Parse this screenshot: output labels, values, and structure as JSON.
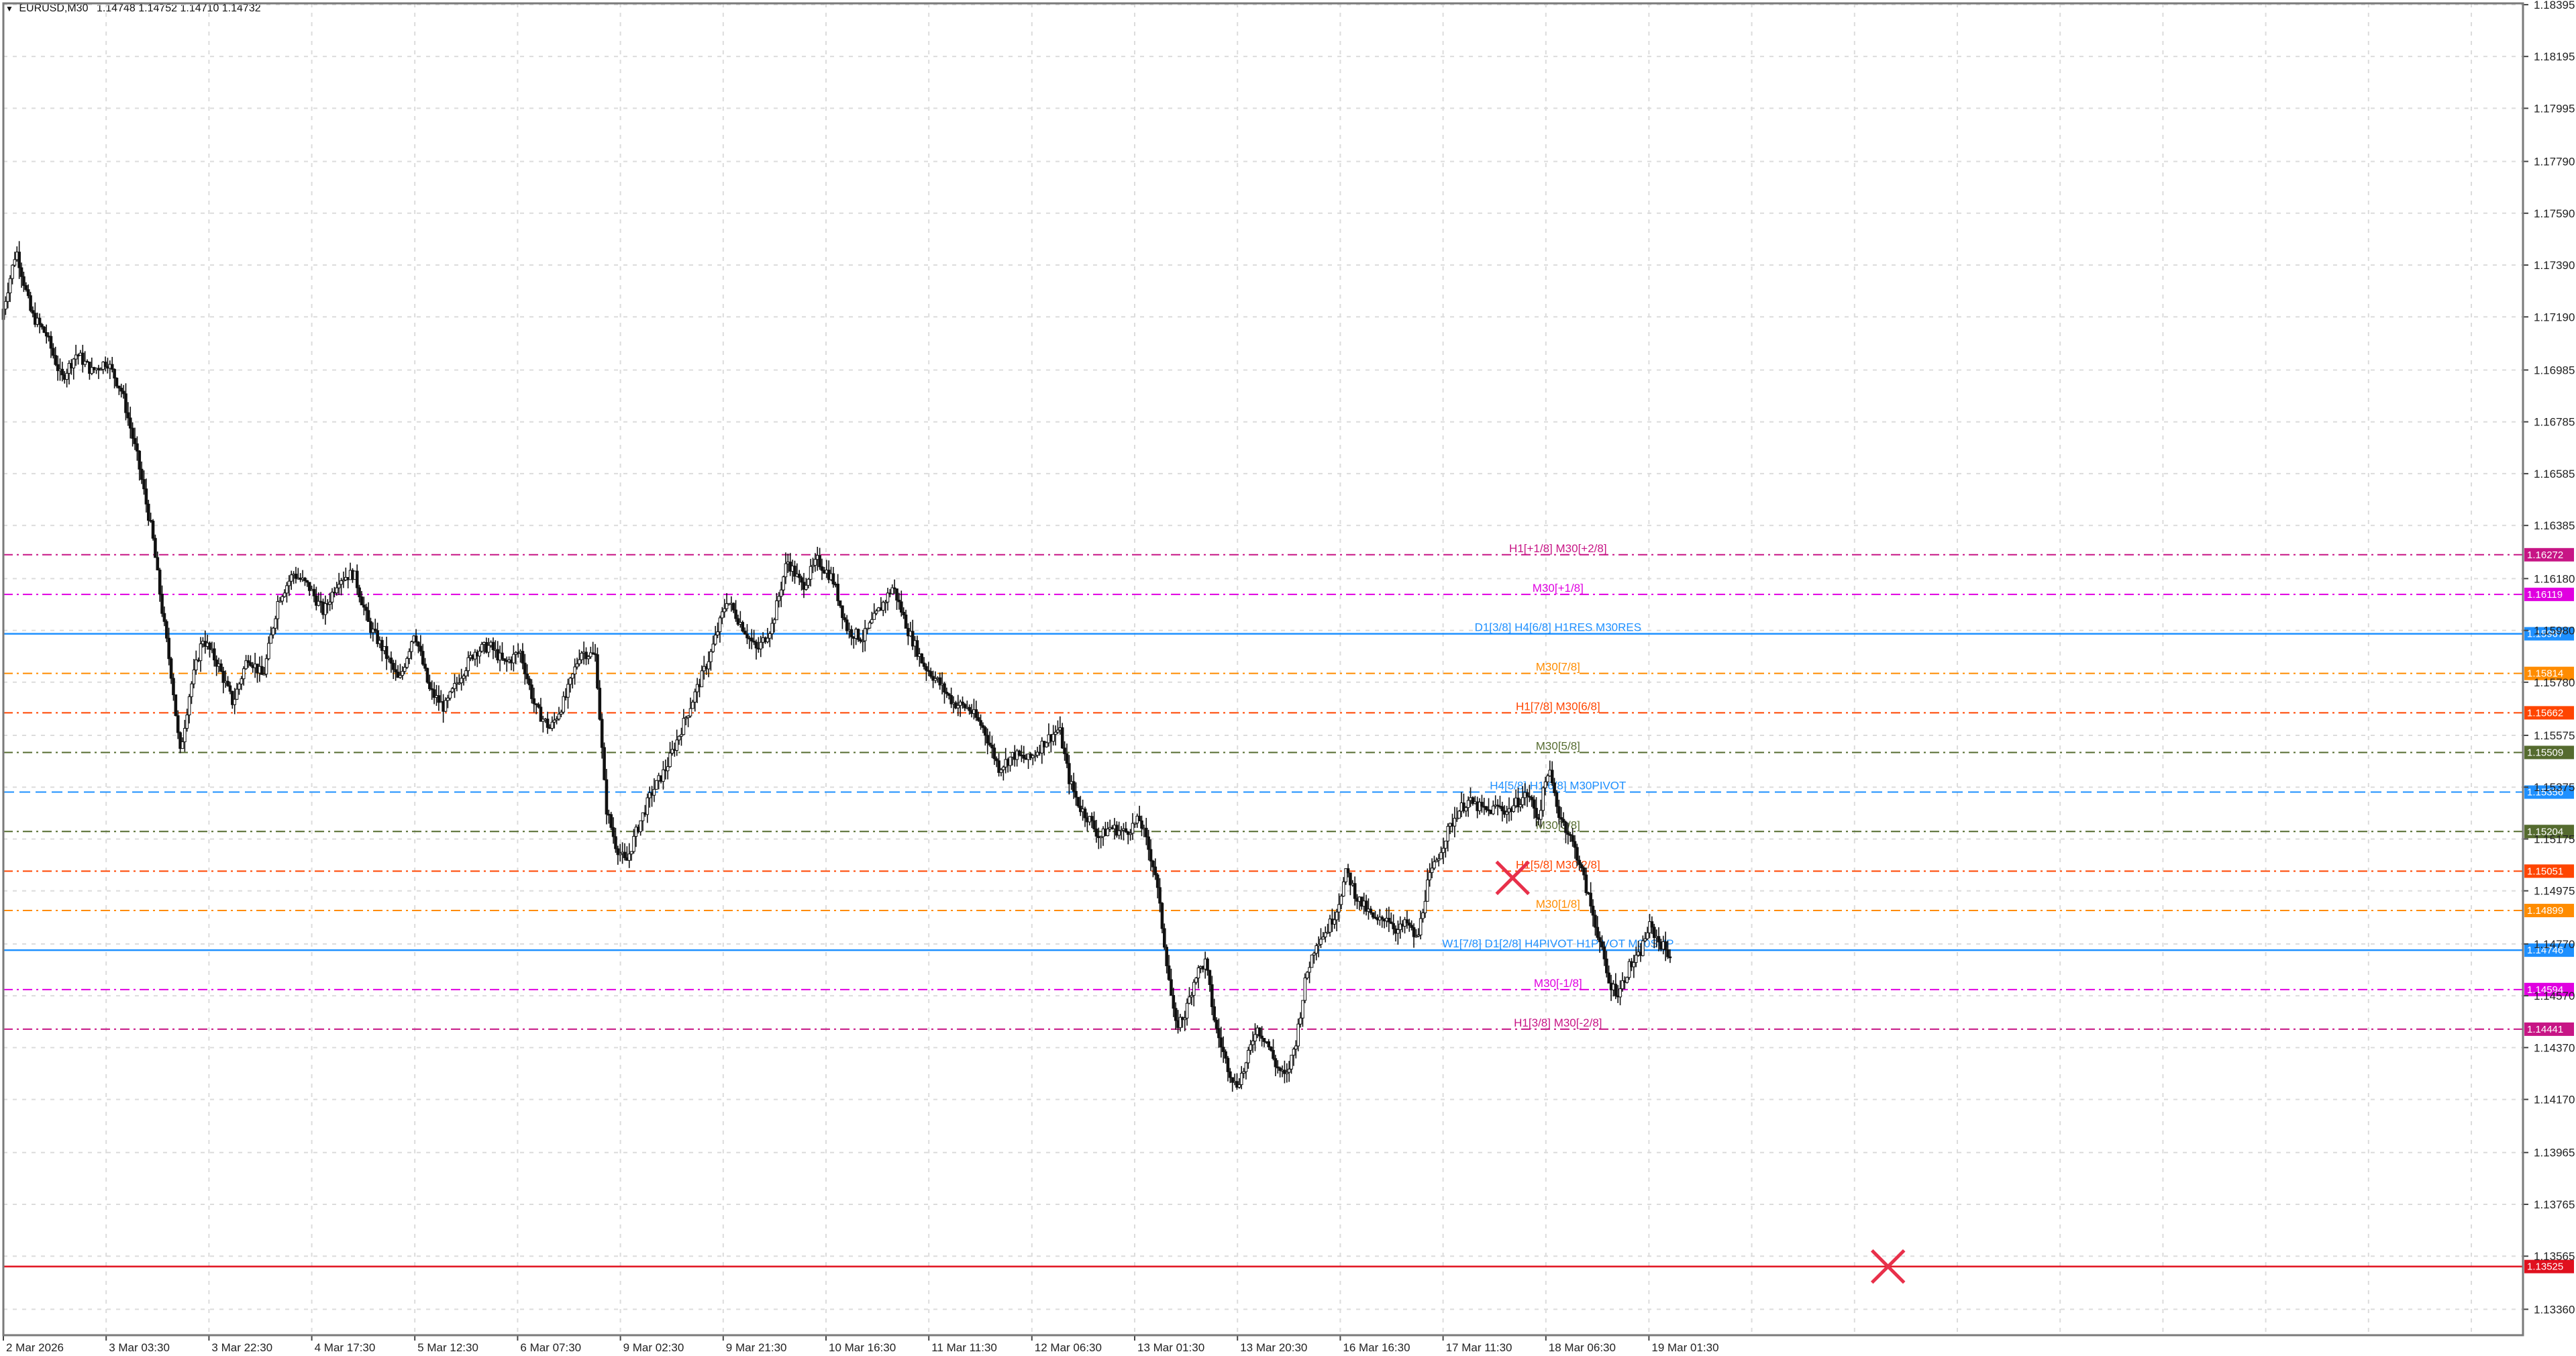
{
  "header": {
    "symbol": "EURUSD,M30",
    "ohlc": "1.14748 1.14752 1.14710 1.14732"
  },
  "chart_data": {
    "type": "candlestick",
    "symbol": "EURUSD",
    "timeframe": "M30",
    "ylim": [
      1.1326,
      1.184
    ],
    "y_ticks": [
      "1.18395",
      "1.18195",
      "1.17995",
      "1.17790",
      "1.17590",
      "1.17390",
      "1.17190",
      "1.16985",
      "1.16785",
      "1.16585",
      "1.16385",
      "1.16180",
      "1.15980",
      "1.15780",
      "1.15575",
      "1.15375",
      "1.15175",
      "1.14975",
      "1.14770",
      "1.14570",
      "1.14370",
      "1.14170",
      "1.13965",
      "1.13765",
      "1.13565",
      "1.13360"
    ],
    "x_ticks": [
      "2 Mar 2026",
      "3 Mar 03:30",
      "3 Mar 22:30",
      "4 Mar 17:30",
      "5 Mar 12:30",
      "6 Mar 07:30",
      "9 Mar 02:30",
      "9 Mar 21:30",
      "10 Mar 16:30",
      "11 Mar 11:30",
      "12 Mar 06:30",
      "13 Mar 01:30",
      "13 Mar 20:30",
      "16 Mar 16:30",
      "17 Mar 11:30",
      "18 Mar 06:30",
      "19 Mar 01:30"
    ],
    "x_tick_positions": [
      0,
      0.0408,
      0.0816,
      0.1224,
      0.1633,
      0.2041,
      0.2449,
      0.2857,
      0.3265,
      0.3673,
      0.4082,
      0.449,
      0.4898,
      0.5306,
      0.5714,
      0.6122,
      0.6531
    ],
    "price_path": [
      [
        0.0,
        1.1718
      ],
      [
        0.006,
        1.1745
      ],
      [
        0.012,
        1.172
      ],
      [
        0.018,
        1.1712
      ],
      [
        0.024,
        1.1695
      ],
      [
        0.03,
        1.1705
      ],
      [
        0.036,
        1.1698
      ],
      [
        0.042,
        1.1702
      ],
      [
        0.048,
        1.169
      ],
      [
        0.054,
        1.1665
      ],
      [
        0.06,
        1.1635
      ],
      [
        0.064,
        1.1605
      ],
      [
        0.068,
        1.1578
      ],
      [
        0.071,
        1.155
      ],
      [
        0.075,
        1.1575
      ],
      [
        0.08,
        1.1595
      ],
      [
        0.086,
        1.1585
      ],
      [
        0.092,
        1.157
      ],
      [
        0.098,
        1.1588
      ],
      [
        0.104,
        1.158
      ],
      [
        0.11,
        1.161
      ],
      [
        0.116,
        1.162
      ],
      [
        0.122,
        1.1615
      ],
      [
        0.128,
        1.1605
      ],
      [
        0.134,
        1.1618
      ],
      [
        0.14,
        1.162
      ],
      [
        0.146,
        1.16
      ],
      [
        0.152,
        1.159
      ],
      [
        0.158,
        1.1578
      ],
      [
        0.164,
        1.1598
      ],
      [
        0.17,
        1.1575
      ],
      [
        0.176,
        1.1568
      ],
      [
        0.182,
        1.158
      ],
      [
        0.188,
        1.159
      ],
      [
        0.194,
        1.1592
      ],
      [
        0.2,
        1.1585
      ],
      [
        0.206,
        1.159
      ],
      [
        0.212,
        1.1568
      ],
      [
        0.218,
        1.156
      ],
      [
        0.224,
        1.1572
      ],
      [
        0.23,
        1.159
      ],
      [
        0.236,
        1.1588
      ],
      [
        0.24,
        1.153
      ],
      [
        0.244,
        1.1515
      ],
      [
        0.248,
        1.1508
      ],
      [
        0.252,
        1.152
      ],
      [
        0.258,
        1.1535
      ],
      [
        0.264,
        1.1545
      ],
      [
        0.27,
        1.156
      ],
      [
        0.276,
        1.1575
      ],
      [
        0.282,
        1.159
      ],
      [
        0.288,
        1.161
      ],
      [
        0.294,
        1.16
      ],
      [
        0.3,
        1.159
      ],
      [
        0.306,
        1.16
      ],
      [
        0.312,
        1.1625
      ],
      [
        0.318,
        1.1615
      ],
      [
        0.324,
        1.1625
      ],
      [
        0.33,
        1.1618
      ],
      [
        0.336,
        1.1598
      ],
      [
        0.342,
        1.1595
      ],
      [
        0.348,
        1.1605
      ],
      [
        0.354,
        1.1615
      ],
      [
        0.36,
        1.1598
      ],
      [
        0.366,
        1.1585
      ],
      [
        0.372,
        1.1578
      ],
      [
        0.378,
        1.157
      ],
      [
        0.384,
        1.1568
      ],
      [
        0.39,
        1.156
      ],
      [
        0.396,
        1.1545
      ],
      [
        0.402,
        1.155
      ],
      [
        0.408,
        1.1548
      ],
      [
        0.414,
        1.1555
      ],
      [
        0.42,
        1.156
      ],
      [
        0.424,
        1.154
      ],
      [
        0.428,
        1.153
      ],
      [
        0.432,
        1.1525
      ],
      [
        0.436,
        1.1518
      ],
      [
        0.44,
        1.1522
      ],
      [
        0.446,
        1.152
      ],
      [
        0.452,
        1.1525
      ],
      [
        0.458,
        1.1505
      ],
      [
        0.462,
        1.1475
      ],
      [
        0.466,
        1.1445
      ],
      [
        0.47,
        1.145
      ],
      [
        0.474,
        1.1465
      ],
      [
        0.478,
        1.147
      ],
      [
        0.482,
        1.1445
      ],
      [
        0.486,
        1.1432
      ],
      [
        0.49,
        1.1422
      ],
      [
        0.494,
        1.143
      ],
      [
        0.498,
        1.1445
      ],
      [
        0.502,
        1.144
      ],
      [
        0.506,
        1.143
      ],
      [
        0.51,
        1.1425
      ],
      [
        0.514,
        1.144
      ],
      [
        0.518,
        1.1465
      ],
      [
        0.522,
        1.1478
      ],
      [
        0.526,
        1.1482
      ],
      [
        0.53,
        1.149
      ],
      [
        0.534,
        1.1505
      ],
      [
        0.538,
        1.1495
      ],
      [
        0.542,
        1.149
      ],
      [
        0.546,
        1.1485
      ],
      [
        0.55,
        1.1488
      ],
      [
        0.554,
        1.1482
      ],
      [
        0.558,
        1.1485
      ],
      [
        0.562,
        1.1478
      ],
      [
        0.566,
        1.15
      ],
      [
        0.57,
        1.151
      ],
      [
        0.574,
        1.152
      ],
      [
        0.578,
        1.1528
      ],
      [
        0.582,
        1.1532
      ],
      [
        0.586,
        1.153
      ],
      [
        0.59,
        1.1528
      ],
      [
        0.594,
        1.153
      ],
      [
        0.598,
        1.1528
      ],
      [
        0.602,
        1.1532
      ],
      [
        0.606,
        1.1535
      ],
      [
        0.61,
        1.1525
      ],
      [
        0.614,
        1.1545
      ],
      [
        0.618,
        1.1528
      ],
      [
        0.622,
        1.152
      ],
      [
        0.626,
        1.151
      ],
      [
        0.63,
        1.1495
      ],
      [
        0.634,
        1.148
      ],
      [
        0.638,
        1.1462
      ],
      [
        0.642,
        1.1458
      ],
      [
        0.646,
        1.1468
      ],
      [
        0.65,
        1.1472
      ],
      [
        0.654,
        1.1484
      ],
      [
        0.658,
        1.1478
      ],
      [
        0.662,
        1.1473
      ]
    ],
    "levels": [
      {
        "label": "H1[+1/8] M30[+2/8]",
        "price": 1.16272,
        "tag": "1.16272",
        "color": "#c71585",
        "style": "dashdot"
      },
      {
        "label": "M30[+1/8]",
        "price": 1.16119,
        "tag": "1.16119",
        "color": "#e000e0",
        "style": "dashdot"
      },
      {
        "label": "D1[3/8] H4[6/8] H1RES M30RES",
        "price": 1.15967,
        "tag": "1.15967",
        "color": "#1e90ff",
        "style": "solid"
      },
      {
        "label": "M30[7/8]",
        "price": 1.15814,
        "tag": "1.15814",
        "color": "#ff8c00",
        "style": "dashdot"
      },
      {
        "label": "H1[7/8] M30[6/8]",
        "price": 1.15662,
        "tag": "1.15662",
        "color": "#ff4500",
        "style": "dashdot"
      },
      {
        "label": "M30[5/8]",
        "price": 1.15509,
        "tag": "1.15509",
        "color": "#556b2f",
        "style": "dashdot"
      },
      {
        "label": "H4[5/8] H1[6/8] M30PIVOT",
        "price": 1.15356,
        "tag": "1.15356",
        "color": "#1e90ff",
        "style": "dashed"
      },
      {
        "label": "M30[3/8]",
        "price": 1.15204,
        "tag": "1.15204",
        "color": "#556b2f",
        "style": "dashdot"
      },
      {
        "label": "H1[5/8] M30[2/8]",
        "price": 1.15051,
        "tag": "1.15051",
        "color": "#ff4500",
        "style": "dashdot"
      },
      {
        "label": "M30[1/8]",
        "price": 1.14899,
        "tag": "1.14899",
        "color": "#ff8c00",
        "style": "dashdot"
      },
      {
        "label": "W1[7/8] D1[2/8] H4PIVOT H1PIVOT M30SUP",
        "price": 1.14746,
        "tag": "1.14746",
        "color": "#1e90ff",
        "style": "solid"
      },
      {
        "label": "M30[-1/8]",
        "price": 1.14594,
        "tag": "1.14594",
        "color": "#e000e0",
        "style": "dashdot"
      },
      {
        "label": "H1[3/8] M30[-2/8]",
        "price": 1.14441,
        "tag": "1.14441",
        "color": "#c71585",
        "style": "dashdot"
      },
      {
        "label": "",
        "price": 1.13525,
        "tag": "1.13525",
        "color": "#e0101e",
        "style": "solid"
      }
    ],
    "markers": [
      {
        "type": "cross",
        "x": 0.599,
        "price": 1.15025,
        "color": "#e8304a"
      },
      {
        "type": "cross",
        "x": 0.748,
        "price": 1.13525,
        "color": "#e8304a"
      }
    ],
    "grid": true
  }
}
